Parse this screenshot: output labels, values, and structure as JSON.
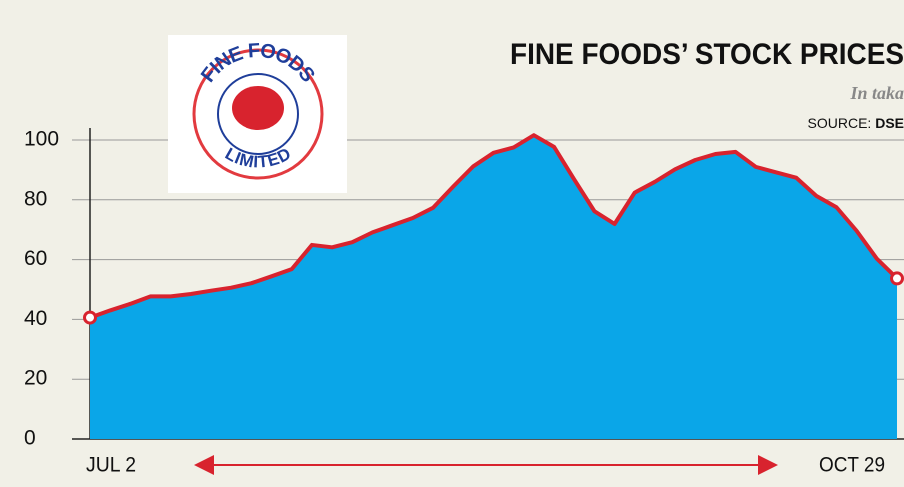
{
  "chart_data": {
    "type": "area",
    "title": "FINE FOODS’ STOCK PRICES",
    "subtitle": "In taka",
    "source_label": "SOURCE:",
    "source": "DSE",
    "logo_top": "FINE FOODS",
    "logo_bottom": "LIMITED",
    "categories": [
      "JUL 2",
      null,
      null,
      null,
      null,
      null,
      null,
      null,
      null,
      null,
      null,
      null,
      null,
      null,
      null,
      null,
      null,
      null,
      null,
      null,
      null,
      null,
      null,
      null,
      null,
      null,
      null,
      null,
      null,
      null,
      null,
      null,
      null,
      null,
      null,
      null,
      null,
      null,
      null,
      null,
      "OCT 29"
    ],
    "values": [
      40.6,
      43.0,
      45.2,
      47.7,
      47.7,
      48.5,
      49.6,
      50.6,
      52.1,
      54.4,
      56.8,
      64.9,
      64.1,
      65.8,
      69.1,
      71.5,
      73.9,
      77.3,
      84.4,
      91.2,
      95.7,
      97.5,
      101.6,
      97.7,
      86.8,
      76.2,
      71.9,
      82.4,
      86.0,
      90.2,
      93.3,
      95.3,
      96.0,
      91.0,
      89.2,
      87.4,
      81.3,
      77.5,
      69.6,
      60.3,
      53.7
    ],
    "color": "#d8232e",
    "fill": "#0aa6e8",
    "ylim": [
      0,
      104
    ],
    "yticks": [
      0,
      20,
      40,
      60,
      80,
      100
    ],
    "grid": true
  }
}
